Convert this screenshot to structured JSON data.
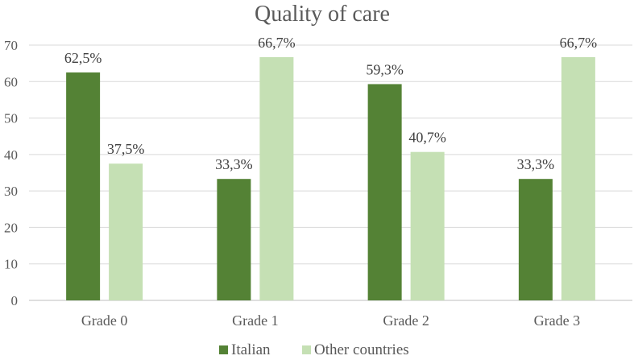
{
  "chart_data": {
    "type": "bar",
    "title": "Quality of care",
    "xlabel": "",
    "ylabel": "",
    "categories": [
      "Grade 0",
      "Grade 1",
      "Grade 2",
      "Grade 3"
    ],
    "series": [
      {
        "name": "Italian",
        "color": "#548235",
        "values": [
          62.5,
          33.3,
          59.3,
          33.3
        ],
        "labels": [
          "62,5%",
          "33,3%",
          "59,3%",
          "33,3%"
        ]
      },
      {
        "name": "Other countries",
        "color": "#c5e0b4",
        "values": [
          37.5,
          66.7,
          40.7,
          66.7
        ],
        "labels": [
          "37,5%",
          "66,7%",
          "40,7%",
          "66,7%"
        ]
      }
    ],
    "ylim": [
      0,
      70
    ],
    "yticks": [
      0,
      10,
      20,
      30,
      40,
      50,
      60,
      70
    ],
    "grid": true,
    "legend": "bottom"
  }
}
